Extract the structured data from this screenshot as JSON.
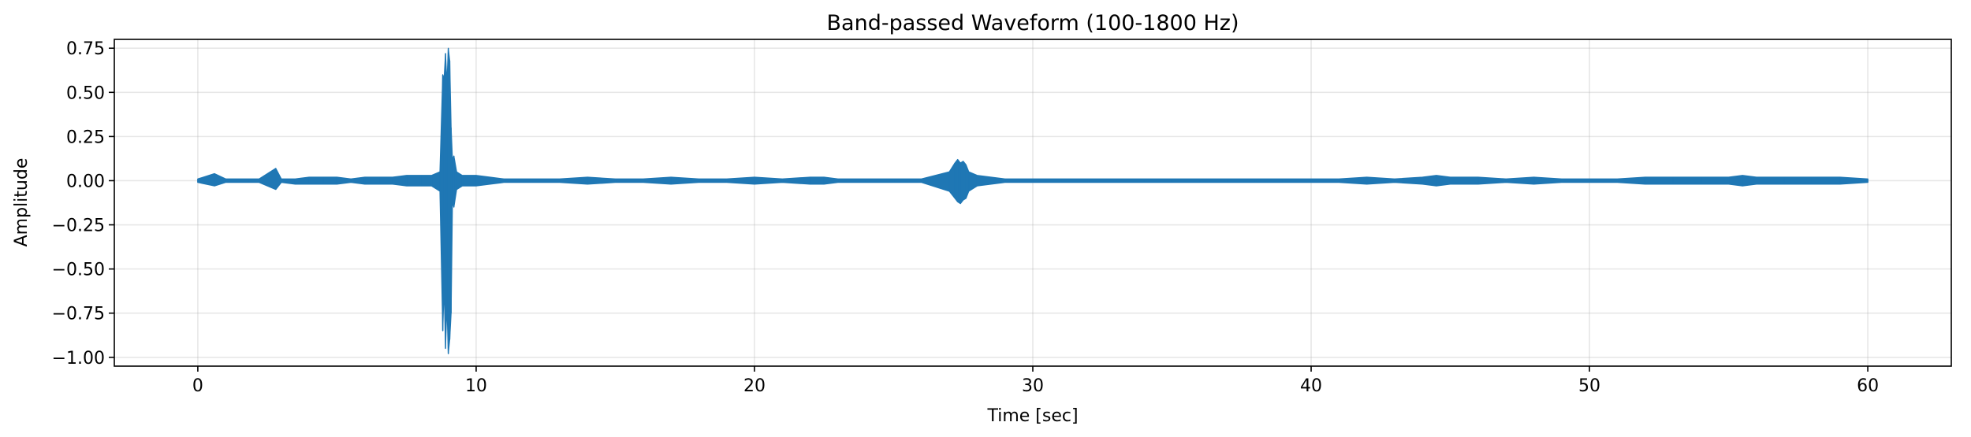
{
  "chart_data": {
    "type": "line",
    "title": "Band-passed Waveform (100-1800 Hz)",
    "xlabel": "Time [sec]",
    "ylabel": "Amplitude",
    "xlim": [
      -3,
      63
    ],
    "ylim": [
      -1.05,
      0.8
    ],
    "xticks": [
      0,
      10,
      20,
      30,
      40,
      50,
      60
    ],
    "xtick_labels": [
      "0",
      "10",
      "20",
      "30",
      "40",
      "50",
      "60"
    ],
    "yticks": [
      0.75,
      0.5,
      0.25,
      0.0,
      -0.25,
      -0.5,
      -0.75,
      -1.0
    ],
    "ytick_labels": [
      "0.75",
      "0.50",
      "0.25",
      "0.00",
      "−0.25",
      "−0.50",
      "−0.75",
      "−1.00"
    ],
    "grid": true,
    "line_color": "#1f77b4",
    "series": [
      {
        "x": [
          0.0,
          0.6,
          1.0,
          1.8,
          2.2,
          2.8,
          3.0,
          3.5,
          4.0,
          4.5,
          5.0,
          5.5,
          6.0,
          6.5,
          7.0,
          7.5,
          8.0,
          8.4,
          8.7,
          8.8,
          8.85,
          8.9,
          8.95,
          9.0,
          9.05,
          9.1,
          9.15,
          9.2,
          9.3,
          9.5,
          10.0,
          10.5,
          11.0,
          12.0,
          13.0,
          14.0,
          15.0,
          16.0,
          17.0,
          18.0,
          19.0,
          20.0,
          21.0,
          22.0,
          22.5,
          23.0,
          24.0,
          25.0,
          26.0,
          27.0,
          27.2,
          27.3,
          27.4,
          27.5,
          27.6,
          27.7,
          28.0,
          29.0,
          30.0,
          31.0,
          32.0,
          33.0,
          34.0,
          35.0,
          36.0,
          37.0,
          38.0,
          39.0,
          40.0,
          41.0,
          42.0,
          43.0,
          44.0,
          44.5,
          45.0,
          46.0,
          47.0,
          48.0,
          49.0,
          50.0,
          51.0,
          52.0,
          53.0,
          54.0,
          55.0,
          55.5,
          56.0,
          57.0,
          58.0,
          59.0,
          60.0
        ],
        "y_max": [
          0.01,
          0.04,
          0.01,
          0.01,
          0.01,
          0.07,
          0.01,
          0.01,
          0.02,
          0.02,
          0.02,
          0.01,
          0.02,
          0.02,
          0.02,
          0.03,
          0.03,
          0.03,
          0.05,
          0.6,
          0.58,
          0.72,
          0.55,
          0.75,
          0.68,
          0.3,
          0.12,
          0.14,
          0.05,
          0.03,
          0.03,
          0.02,
          0.01,
          0.01,
          0.01,
          0.02,
          0.01,
          0.01,
          0.02,
          0.01,
          0.01,
          0.02,
          0.01,
          0.02,
          0.02,
          0.01,
          0.01,
          0.01,
          0.01,
          0.05,
          0.1,
          0.12,
          0.1,
          0.11,
          0.09,
          0.05,
          0.03,
          0.01,
          0.01,
          0.01,
          0.01,
          0.01,
          0.01,
          0.01,
          0.01,
          0.01,
          0.01,
          0.01,
          0.01,
          0.01,
          0.02,
          0.01,
          0.02,
          0.03,
          0.02,
          0.02,
          0.01,
          0.02,
          0.01,
          0.01,
          0.01,
          0.02,
          0.02,
          0.02,
          0.02,
          0.03,
          0.02,
          0.02,
          0.02,
          0.02,
          0.01
        ],
        "y_min": [
          -0.01,
          -0.03,
          -0.01,
          -0.01,
          -0.01,
          -0.05,
          -0.01,
          -0.02,
          -0.02,
          -0.02,
          -0.02,
          -0.01,
          -0.02,
          -0.02,
          -0.02,
          -0.03,
          -0.03,
          -0.03,
          -0.06,
          -0.85,
          -0.6,
          -0.95,
          -0.7,
          -0.98,
          -0.9,
          -0.75,
          -0.12,
          -0.15,
          -0.05,
          -0.03,
          -0.03,
          -0.02,
          -0.01,
          -0.01,
          -0.01,
          -0.02,
          -0.01,
          -0.01,
          -0.02,
          -0.01,
          -0.01,
          -0.02,
          -0.01,
          -0.02,
          -0.02,
          -0.01,
          -0.01,
          -0.01,
          -0.01,
          -0.06,
          -0.1,
          -0.12,
          -0.13,
          -0.11,
          -0.1,
          -0.06,
          -0.03,
          -0.01,
          -0.01,
          -0.01,
          -0.01,
          -0.01,
          -0.01,
          -0.01,
          -0.01,
          -0.01,
          -0.01,
          -0.01,
          -0.01,
          -0.01,
          -0.02,
          -0.01,
          -0.02,
          -0.03,
          -0.02,
          -0.02,
          -0.01,
          -0.02,
          -0.01,
          -0.01,
          -0.01,
          -0.02,
          -0.02,
          -0.02,
          -0.02,
          -0.03,
          -0.02,
          -0.02,
          -0.02,
          -0.02,
          -0.01
        ]
      }
    ]
  }
}
